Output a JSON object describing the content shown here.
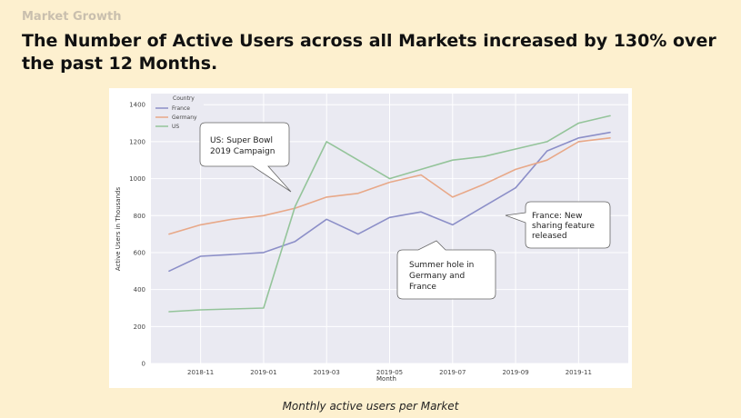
{
  "slide": {
    "eyebrow": "Market Growth",
    "headline": "The Number of Active Users across all Markets increased by 130% over the past 12 Months.",
    "caption": "Monthly active users per Market"
  },
  "chart_data": {
    "type": "line",
    "x": [
      "2018-10",
      "2018-11",
      "2018-12",
      "2019-01",
      "2019-02",
      "2019-03",
      "2019-04",
      "2019-05",
      "2019-06",
      "2019-07",
      "2019-08",
      "2019-09",
      "2019-10",
      "2019-11",
      "2019-12"
    ],
    "xticks": [
      "2018-11",
      "2019-01",
      "2019-03",
      "2019-05",
      "2019-07",
      "2019-09",
      "2019-11"
    ],
    "yticks": [
      0,
      200,
      400,
      600,
      800,
      1000,
      1200,
      1400
    ],
    "ylim": [
      0,
      1460
    ],
    "xlabel": "Month",
    "ylabel": "Active Users in Thousands",
    "legend_title": "Country",
    "legend_position": "top-left",
    "grid": true,
    "series": [
      {
        "name": "France",
        "color": "#8c8fc8",
        "values": [
          500,
          580,
          590,
          600,
          660,
          780,
          700,
          790,
          820,
          750,
          850,
          950,
          1150,
          1220,
          1250
        ]
      },
      {
        "name": "Germany",
        "color": "#e8a888",
        "values": [
          700,
          750,
          780,
          800,
          840,
          900,
          920,
          980,
          1020,
          900,
          970,
          1050,
          1100,
          1200,
          1220
        ]
      },
      {
        "name": "US",
        "color": "#94c49a",
        "values": [
          280,
          290,
          295,
          300,
          850,
          1200,
          1100,
          1000,
          1050,
          1100,
          1120,
          1160,
          1200,
          1300,
          1340
        ]
      }
    ],
    "annotations": [
      {
        "lines": [
          "US: Super Bowl",
          "2019 Campaign"
        ]
      },
      {
        "lines": [
          "France: New",
          "sharing feature",
          "released"
        ]
      },
      {
        "lines": [
          "Summer hole in",
          "Germany and",
          "France"
        ]
      }
    ]
  }
}
